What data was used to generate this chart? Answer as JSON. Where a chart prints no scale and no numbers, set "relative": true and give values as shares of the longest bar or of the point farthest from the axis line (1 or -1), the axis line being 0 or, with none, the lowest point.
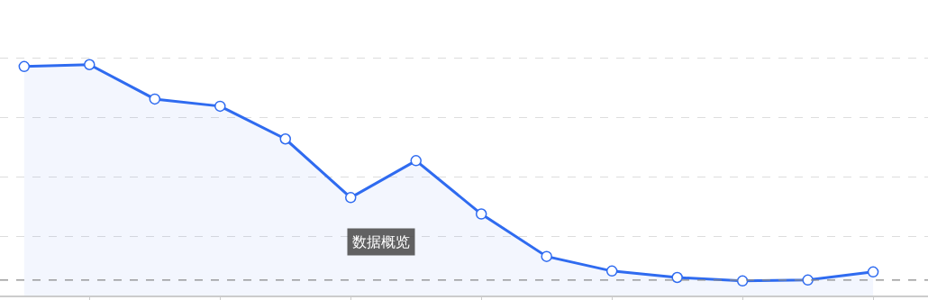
{
  "chart_data": {
    "type": "area",
    "relative": true,
    "categories": [
      null,
      null,
      null,
      null,
      null,
      null,
      null,
      null,
      null,
      null,
      null,
      null,
      null,
      null
    ],
    "series": [
      {
        "color": "#2f6bf0",
        "values": [
          0.992,
          1,
          0.851,
          0.82,
          0.678,
          0.424,
          0.584,
          0.353,
          0.169,
          0.106,
          0.078,
          0.063,
          0.067,
          0.102
        ]
      }
    ],
    "ref_lines": [
      {
        "axis": "y",
        "value": 0.067,
        "color": "#888888",
        "line_style": "dashed"
      }
    ],
    "annotations": [
      "数据概览"
    ],
    "grid": "y",
    "marker": "circle",
    "line_style": "solid",
    "legend": false
  }
}
